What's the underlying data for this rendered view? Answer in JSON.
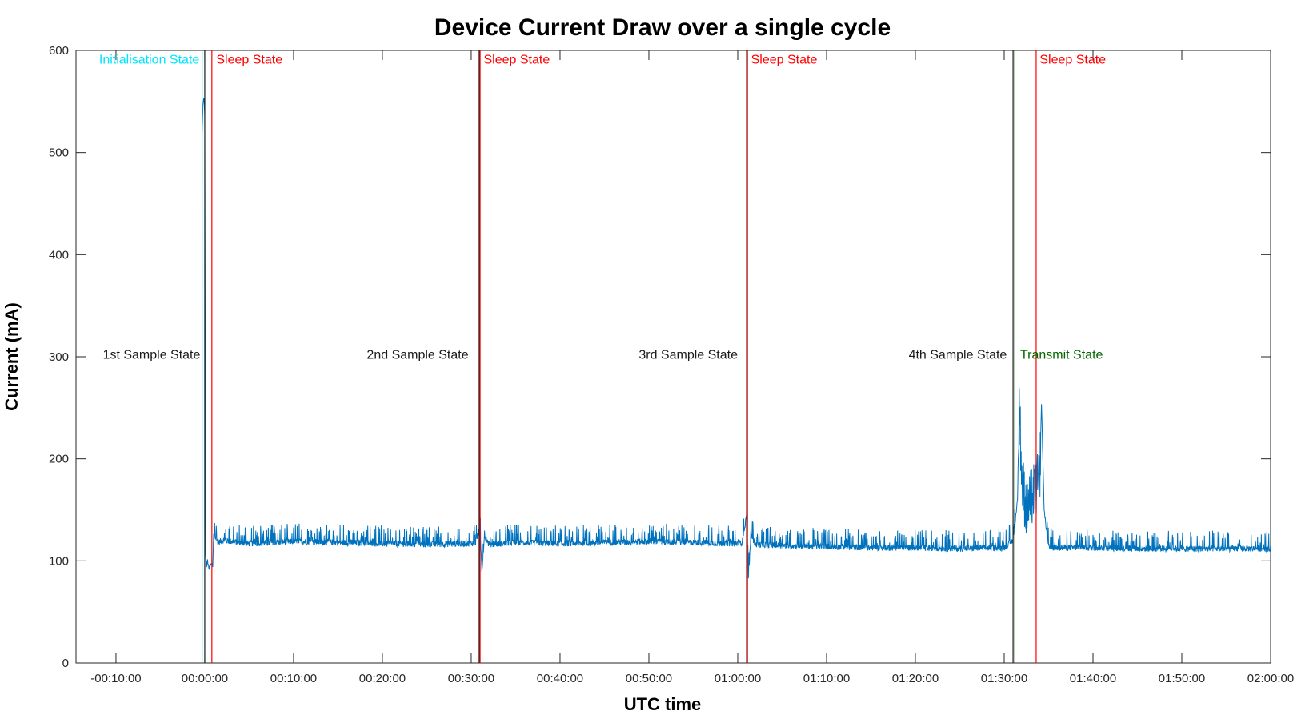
{
  "chart_data": {
    "type": "line",
    "title": "Device Current Draw over a single cycle",
    "xlabel": "UTC time",
    "ylabel": "Current (mA)",
    "xlim_minutes": [
      -14.5,
      120
    ],
    "ylim": [
      0,
      600
    ],
    "x_ticks": [
      "-00:10:00",
      "00:00:00",
      "00:10:00",
      "00:20:00",
      "00:30:00",
      "00:40:00",
      "00:50:00",
      "01:00:00",
      "01:10:00",
      "01:20:00",
      "01:30:00",
      "01:40:00",
      "01:50:00",
      "02:00:00"
    ],
    "x_tick_minutes": [
      -10,
      0,
      10,
      20,
      30,
      40,
      50,
      60,
      70,
      80,
      90,
      100,
      110,
      120
    ],
    "y_ticks": [
      0,
      100,
      200,
      300,
      400,
      500,
      600
    ],
    "grid": false,
    "colors": {
      "series": "#0072bd",
      "initialisation": "#00e5ff",
      "sample": "#1a1a1a",
      "sleep": "#ff0000",
      "transmit": "#006400"
    },
    "series": [
      {
        "x_minutes": [
          -0.3,
          -0.2,
          -0.1,
          0.0,
          0.1,
          0.2,
          0.3,
          0.5,
          0.7,
          0.9,
          1.0,
          1.5,
          2,
          5,
          10,
          15,
          20,
          25,
          30,
          30.5,
          31.0,
          31.2,
          31.5,
          32,
          35,
          40,
          45,
          50,
          55,
          60,
          60.5,
          61.0,
          61.2,
          61.5,
          62,
          65,
          70,
          75,
          80,
          85,
          90,
          91.0,
          91.5,
          91.7,
          92.0,
          92.5,
          93.0,
          93.5,
          94.0,
          94.2,
          94.5,
          95,
          100,
          105,
          110,
          115,
          120
        ],
        "y": [
          520,
          545,
          555,
          535,
          105,
          95,
          100,
          92,
          98,
          95,
          125,
          118,
          120,
          117,
          119,
          118,
          117,
          116,
          117,
          118,
          130,
          90,
          125,
          116,
          118,
          117,
          118,
          119,
          118,
          117,
          118,
          145,
          85,
          125,
          116,
          115,
          114,
          113,
          113,
          112,
          113,
          120,
          160,
          255,
          180,
          150,
          160,
          170,
          180,
          255,
          150,
          113,
          113,
          112,
          112,
          112,
          112
        ]
      }
    ],
    "state_lines": [
      {
        "x_minutes": -0.3,
        "kind": "initialisation"
      },
      {
        "x_minutes": 0.0,
        "kind": "sample"
      },
      {
        "x_minutes": 0.8,
        "kind": "sleep"
      },
      {
        "x_minutes": 30.9,
        "kind": "sample"
      },
      {
        "x_minutes": 31.0,
        "kind": "sleep"
      },
      {
        "x_minutes": 61.0,
        "kind": "sample"
      },
      {
        "x_minutes": 61.1,
        "kind": "sleep"
      },
      {
        "x_minutes": 91.0,
        "kind": "sample"
      },
      {
        "x_minutes": 91.2,
        "kind": "transmit"
      },
      {
        "x_minutes": 93.6,
        "kind": "sleep"
      }
    ],
    "annotations": [
      {
        "text": "Initialisation State",
        "x_minutes": -0.6,
        "y": 587,
        "anchor": "end",
        "kind": "initialisation"
      },
      {
        "text": "Sleep State",
        "x_minutes": 1.3,
        "y": 587,
        "anchor": "start",
        "kind": "sleep"
      },
      {
        "text": "Sleep State",
        "x_minutes": 31.4,
        "y": 587,
        "anchor": "start",
        "kind": "sleep"
      },
      {
        "text": "Sleep State",
        "x_minutes": 61.5,
        "y": 587,
        "anchor": "start",
        "kind": "sleep"
      },
      {
        "text": "Sleep State",
        "x_minutes": 94.0,
        "y": 587,
        "anchor": "start",
        "kind": "sleep"
      },
      {
        "text": "1st Sample State",
        "x_minutes": -0.5,
        "y": 298,
        "anchor": "end",
        "kind": "sample"
      },
      {
        "text": "2nd Sample State",
        "x_minutes": 29.7,
        "y": 298,
        "anchor": "end",
        "kind": "sample"
      },
      {
        "text": "3rd Sample State",
        "x_minutes": 60.0,
        "y": 298,
        "anchor": "end",
        "kind": "sample"
      },
      {
        "text": "4th Sample State",
        "x_minutes": 90.3,
        "y": 298,
        "anchor": "end",
        "kind": "sample"
      },
      {
        "text": "Transmit State",
        "x_minutes": 91.8,
        "y": 298,
        "anchor": "start",
        "kind": "transmit"
      }
    ]
  }
}
